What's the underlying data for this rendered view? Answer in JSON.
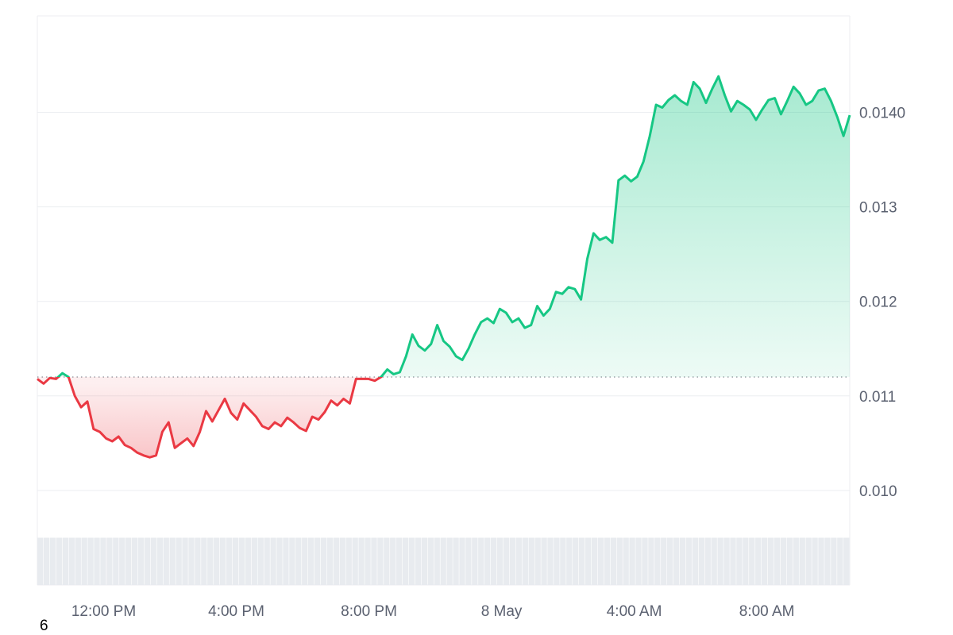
{
  "chart_data": {
    "type": "area",
    "x_ticks": [
      "12:00 PM",
      "4:00 PM",
      "8:00 PM",
      "8 May",
      "4:00 AM",
      "8:00 AM"
    ],
    "y_ticks": [
      "0.010",
      "0.011",
      "0.012",
      "0.013",
      "0.0140"
    ],
    "y_tick_values": [
      0.01,
      0.011,
      0.012,
      0.013,
      0.014
    ],
    "ylim": [
      0.009,
      0.01502
    ],
    "xlim_hours": [
      0,
      24.5
    ],
    "x_tick_hours": [
      2,
      6,
      10,
      14,
      18,
      22
    ],
    "baseline": 0.0112,
    "grid": true,
    "colors": {
      "up": "#16c784",
      "down": "#ea3943",
      "grid": "#eceef1",
      "volume": "#e8ebef"
    },
    "series": [
      {
        "values": [
          0.01118,
          0.01113,
          0.01119,
          0.01118,
          0.01124,
          0.0112,
          0.011,
          0.01088,
          0.01094,
          0.01065,
          0.01062,
          0.01055,
          0.01052,
          0.01057,
          0.01048,
          0.01045,
          0.0104,
          0.01037,
          0.01035,
          0.01037,
          0.01062,
          0.01072,
          0.01045,
          0.0105,
          0.01055,
          0.01047,
          0.01062,
          0.01084,
          0.01073,
          0.01085,
          0.01097,
          0.01082,
          0.01075,
          0.01092,
          0.01085,
          0.01078,
          0.01068,
          0.01065,
          0.01072,
          0.01068,
          0.01077,
          0.01072,
          0.01066,
          0.01063,
          0.01078,
          0.01075,
          0.01083,
          0.01095,
          0.0109,
          0.01097,
          0.01092,
          0.01118,
          0.01118,
          0.01118,
          0.01116,
          0.0112,
          0.01128,
          0.01123,
          0.01125,
          0.01142,
          0.01165,
          0.01153,
          0.01148,
          0.01155,
          0.01175,
          0.01158,
          0.01152,
          0.01142,
          0.01138,
          0.0115,
          0.01165,
          0.01178,
          0.01182,
          0.01177,
          0.01192,
          0.01188,
          0.01178,
          0.01182,
          0.01172,
          0.01175,
          0.01195,
          0.01185,
          0.01192,
          0.0121,
          0.01208,
          0.01215,
          0.01213,
          0.01202,
          0.01245,
          0.01272,
          0.01265,
          0.01268,
          0.01262,
          0.01328,
          0.01333,
          0.01327,
          0.01332,
          0.01348,
          0.01375,
          0.01408,
          0.01405,
          0.01413,
          0.01418,
          0.01412,
          0.01408,
          0.01432,
          0.01425,
          0.0141,
          0.01425,
          0.01438,
          0.01418,
          0.01401,
          0.01412,
          0.01408,
          0.01403,
          0.01392,
          0.01403,
          0.01413,
          0.01415,
          0.01398,
          0.01412,
          0.01427,
          0.0142,
          0.01408,
          0.01412,
          0.01423,
          0.01425,
          0.01412,
          0.01395,
          0.01375,
          0.01397
        ]
      }
    ],
    "volume": [
      0.0095,
      0.0095,
      0.0095,
      0.0095,
      0.0095,
      0.0095,
      0.0095,
      0.0095,
      0.0095,
      0.0095,
      0.0095,
      0.0095,
      0.0095,
      0.0095,
      0.0095,
      0.0095,
      0.0095,
      0.0095,
      0.0095,
      0.0095,
      0.0095,
      0.0095,
      0.0095,
      0.0095,
      0.0095,
      0.0095,
      0.0095,
      0.0095,
      0.0095,
      0.0095,
      0.0095,
      0.0095,
      0.0095,
      0.0095,
      0.0095,
      0.0095,
      0.0095,
      0.0095,
      0.0095,
      0.0095,
      0.0095,
      0.0095,
      0.0095,
      0.0095,
      0.0095,
      0.0095,
      0.0095,
      0.0095,
      0.0095,
      0.0095,
      0.0095,
      0.0095,
      0.0095,
      0.0095,
      0.0095,
      0.0095,
      0.0095,
      0.0095,
      0.0095,
      0.0095,
      0.0095,
      0.0095,
      0.0095,
      0.0095,
      0.0095,
      0.0095,
      0.0095,
      0.0095,
      0.0095,
      0.0095,
      0.0095,
      0.0095,
      0.0095,
      0.0095,
      0.0095,
      0.0095,
      0.0095,
      0.0095,
      0.0095,
      0.0095,
      0.0095,
      0.0095,
      0.0095,
      0.0095,
      0.0095,
      0.0095,
      0.0095,
      0.0095,
      0.0095,
      0.0095,
      0.0095,
      0.0095,
      0.0095,
      0.0095,
      0.0095,
      0.0095,
      0.0095,
      0.0095,
      0.0095,
      0.0095,
      0.0095,
      0.0095,
      0.0095,
      0.0095,
      0.0095,
      0.0095,
      0.0095,
      0.0095,
      0.0095,
      0.0095,
      0.0095,
      0.0095,
      0.0095,
      0.0095,
      0.0095,
      0.0095,
      0.0095,
      0.0095,
      0.0095,
      0.0095,
      0.0095,
      0.0095,
      0.0095,
      0.0095,
      0.0095,
      0.0095,
      0.0095,
      0.0095,
      0.0095
    ]
  },
  "corner_label": "6"
}
